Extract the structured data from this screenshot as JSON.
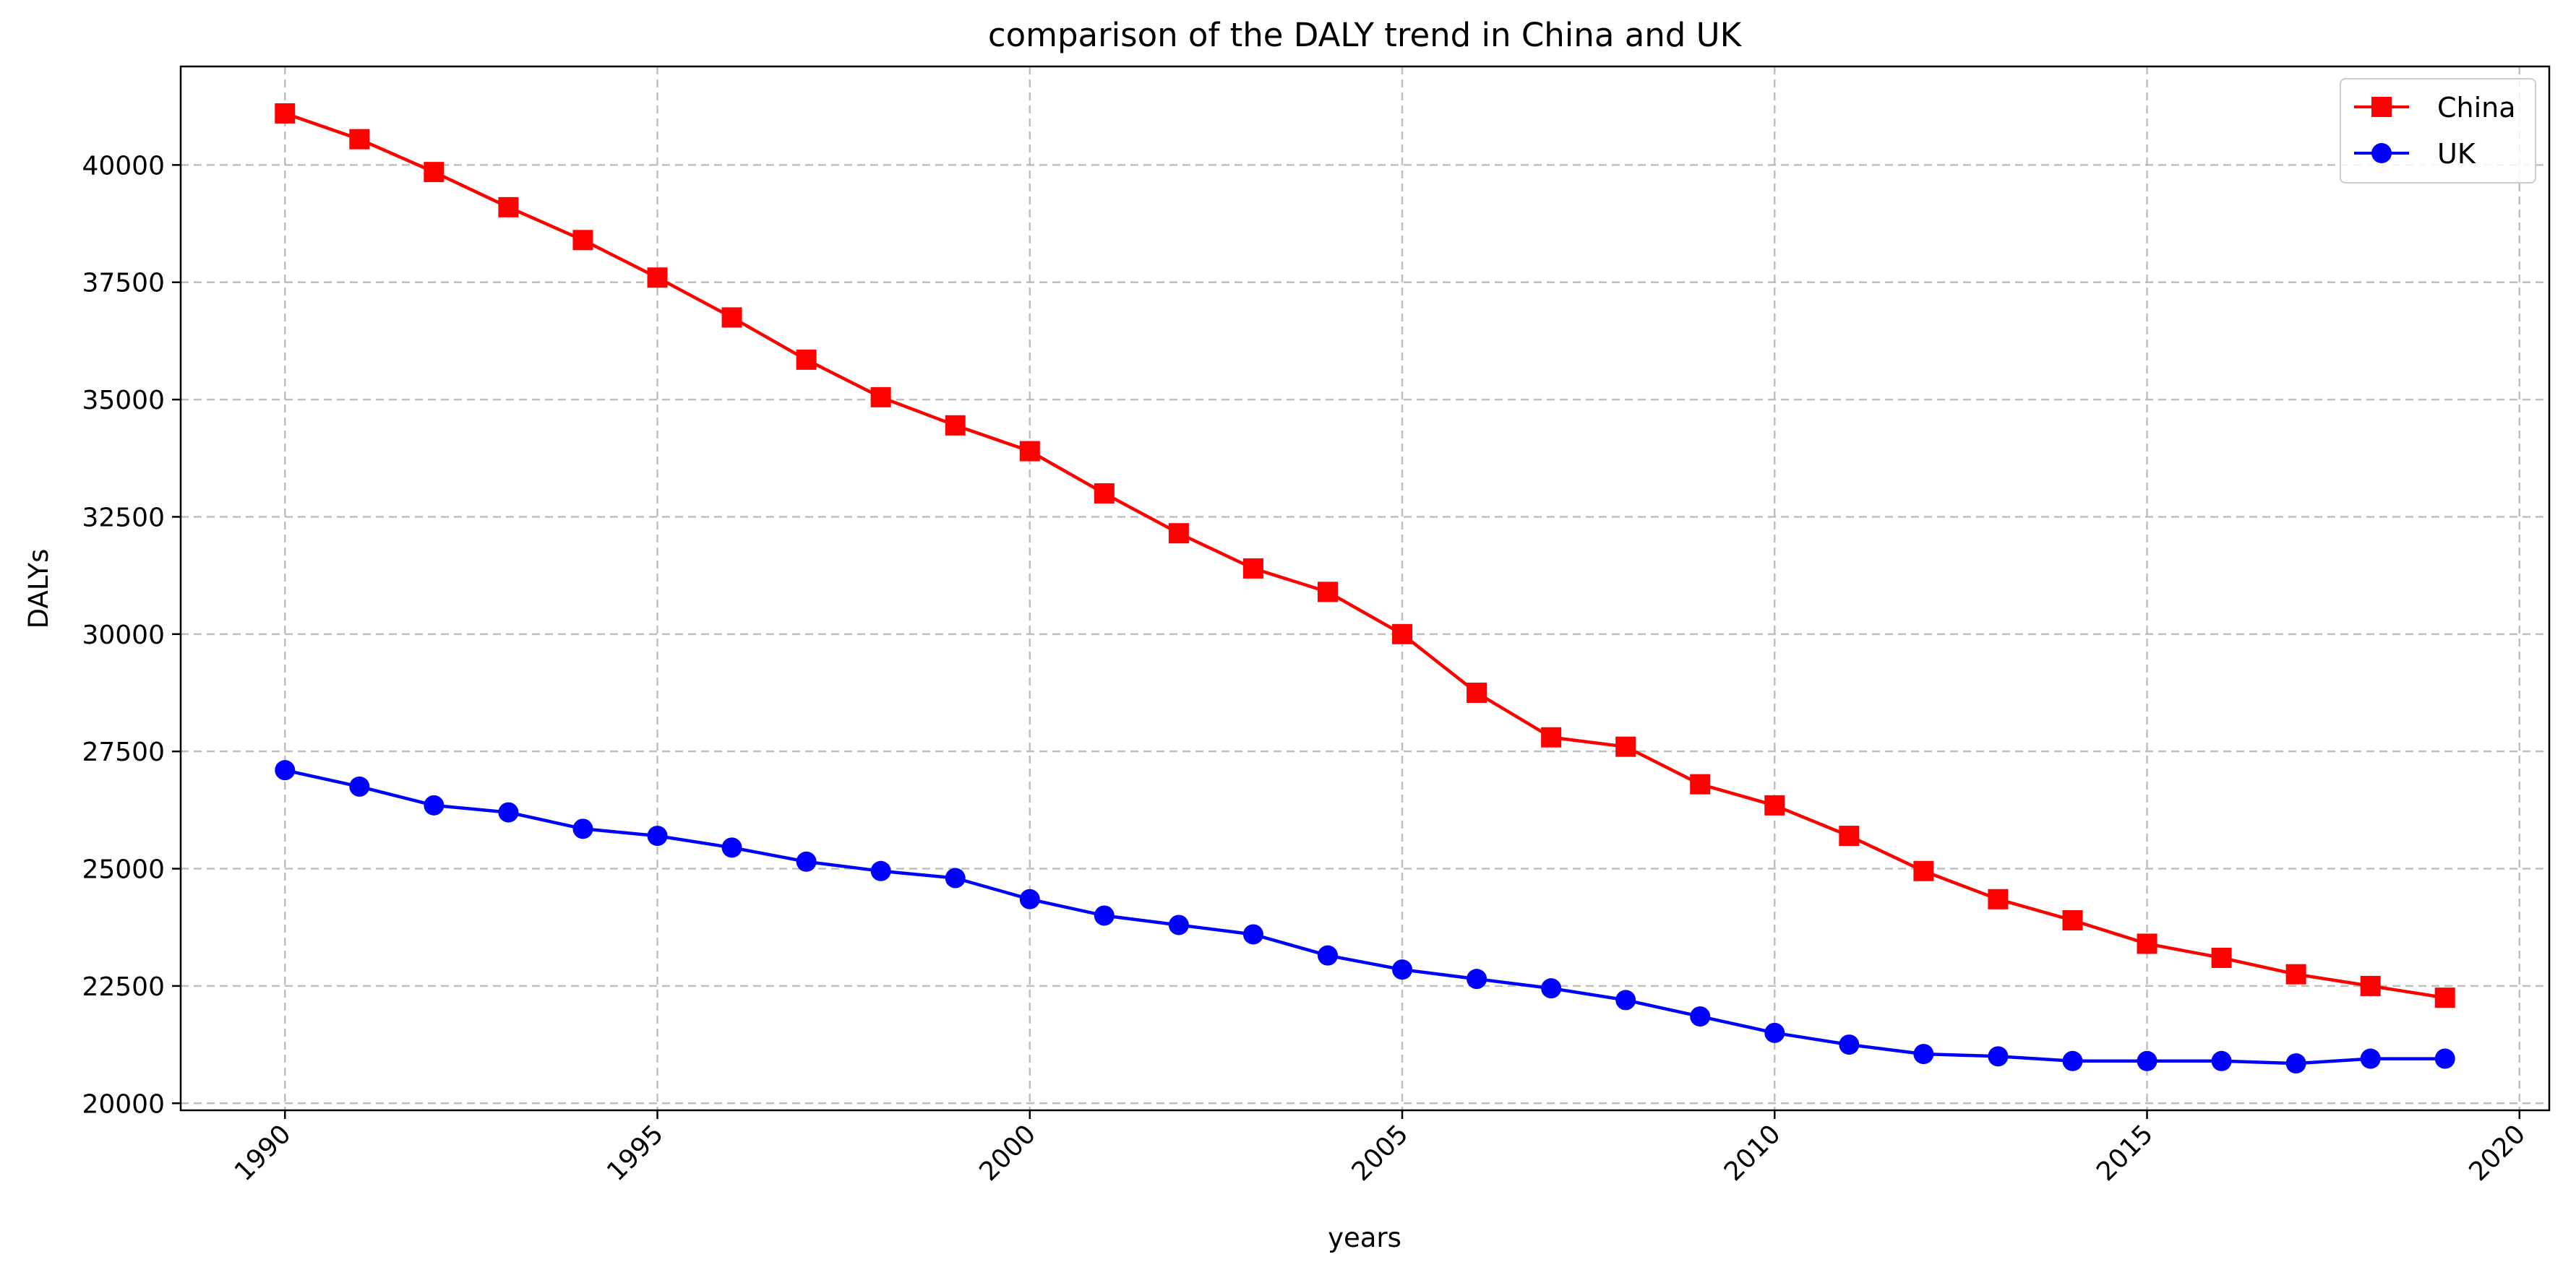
{
  "chart_data": {
    "type": "line",
    "title": "comparison of the DALY trend in China and UK",
    "xlabel": "years",
    "ylabel": "DALYs",
    "x": [
      1990,
      1991,
      1992,
      1993,
      1994,
      1995,
      1996,
      1997,
      1998,
      1999,
      2000,
      2001,
      2002,
      2003,
      2004,
      2005,
      2006,
      2007,
      2008,
      2009,
      2010,
      2011,
      2012,
      2013,
      2014,
      2015,
      2016,
      2017,
      2018,
      2019
    ],
    "xlim": [
      1988.6,
      2020.4
    ],
    "ylim": [
      19850,
      42100
    ],
    "xticks": [
      1990,
      1995,
      2000,
      2005,
      2010,
      2015,
      2020
    ],
    "yticks": [
      20000,
      22500,
      25000,
      27500,
      30000,
      32500,
      35000,
      37500,
      40000
    ],
    "grid": true,
    "legend_position": "top-right",
    "series": [
      {
        "name": "China",
        "color": "#ff0000",
        "marker": "square",
        "values": [
          41100,
          40550,
          39850,
          39100,
          38400,
          37600,
          36750,
          35850,
          35050,
          34450,
          33900,
          33000,
          32150,
          31400,
          30900,
          30000,
          28750,
          27800,
          27600,
          26800,
          26350,
          25700,
          24950,
          24350,
          23900,
          23400,
          23100,
          22750,
          22500,
          22250
        ]
      },
      {
        "name": "UK",
        "color": "#0000ff",
        "marker": "circle",
        "values": [
          27100,
          26750,
          26350,
          26200,
          25850,
          25700,
          25450,
          25150,
          24950,
          24800,
          24350,
          24000,
          23800,
          23600,
          23150,
          22850,
          22650,
          22450,
          22200,
          21850,
          21500,
          21250,
          21050,
          21000,
          20900,
          20900,
          20900,
          20850,
          20950,
          20950
        ]
      }
    ]
  }
}
